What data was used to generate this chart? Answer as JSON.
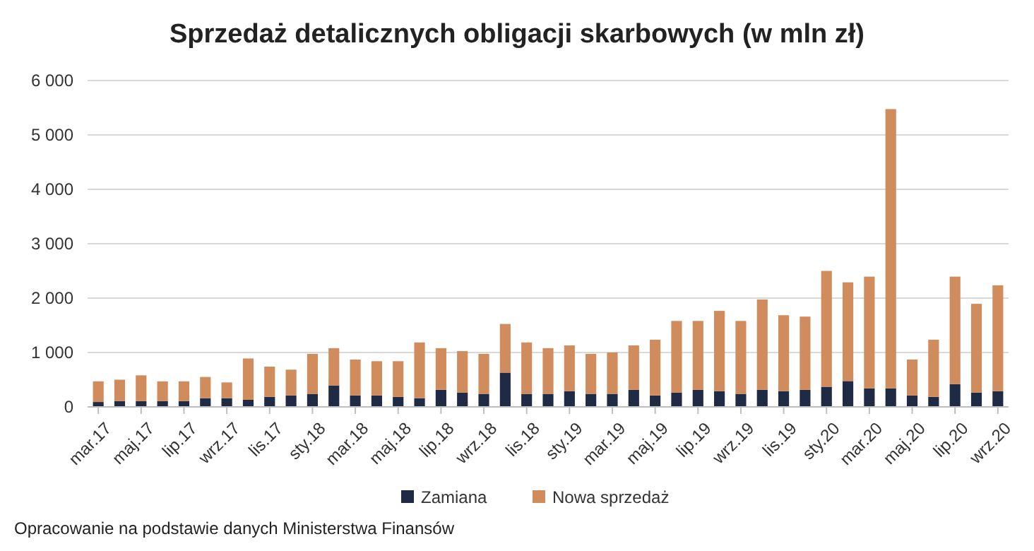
{
  "chart_data": {
    "type": "bar",
    "title": "Sprzedaż detalicznych obligacji skarbowych (w mln zł)",
    "categories": [
      "mar.17",
      null,
      "maj.17",
      null,
      "lip.17",
      null,
      "wrz.17",
      null,
      "lis.17",
      null,
      "sty.18",
      null,
      "mar.18",
      null,
      "maj.18",
      null,
      "lip.18",
      null,
      "wrz.18",
      null,
      "lis.18",
      null,
      "sty.19",
      null,
      "mar.19",
      null,
      "maj.19",
      null,
      "lip.19",
      null,
      "wrz.19",
      null,
      "lis.19",
      null,
      "sty.20",
      null,
      "mar.20",
      null,
      "maj.20",
      null,
      "lip.20",
      null,
      "wrz.20"
    ],
    "stacked": true,
    "series": [
      {
        "name": "Zamiana",
        "color": "#1f2a44",
        "values": [
          90,
          105,
          105,
          105,
          105,
          160,
          160,
          130,
          185,
          210,
          240,
          395,
          210,
          210,
          185,
          160,
          315,
          265,
          240,
          630,
          240,
          240,
          290,
          240,
          240,
          315,
          210,
          265,
          315,
          290,
          240,
          315,
          290,
          315,
          370,
          475,
          340,
          340,
          210,
          185,
          420,
          265,
          290
        ]
      },
      {
        "name": "Nowa sprzedaż",
        "color": "#d08c5c",
        "values": [
          380,
          395,
          475,
          365,
          365,
          390,
          290,
          760,
          555,
          475,
          735,
          685,
          660,
          630,
          655,
          1025,
          765,
          760,
          735,
          895,
          945,
          840,
          840,
          735,
          760,
          815,
          1025,
          1315,
          1265,
          1475,
          1340,
          1660,
          1395,
          1345,
          2130,
          1815,
          2055,
          5135,
          660,
          1050,
          1975,
          1630,
          1945
        ]
      }
    ],
    "ylim": [
      0,
      6000
    ],
    "yticks": [
      0,
      {
        "value": 1000,
        "label": "1 000"
      },
      {
        "value": 2000,
        "label": "2 000"
      },
      {
        "value": 3000,
        "label": "3 000"
      },
      {
        "value": 4000,
        "label": "4 000"
      },
      {
        "value": 5000,
        "label": "5 000"
      },
      {
        "value": 6000,
        "label": "6 000"
      }
    ],
    "grid": "y",
    "legend": "bottom",
    "annotations": [
      "Opracowanie na podstawie danych Ministerstwa Finansów"
    ]
  }
}
